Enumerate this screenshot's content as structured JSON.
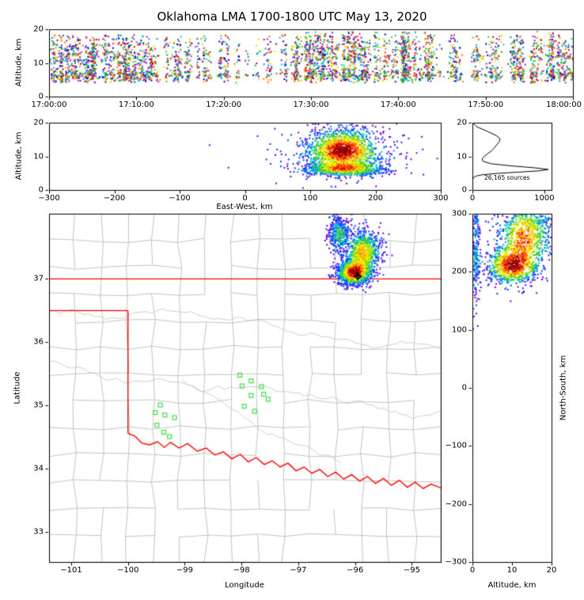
{
  "title": "Oklahoma LMA 1700-1800 UTC May 13, 2020",
  "palette_speckle": [
    "#dd0000",
    "#ff7700",
    "#ffcc00",
    "#55cc00",
    "#00aa33",
    "#00cccc",
    "#2277ff",
    "#0000cc",
    "#7722cc",
    "#cc2299"
  ],
  "palette_density": [
    "#800000",
    "#cc0000",
    "#ff2a00",
    "#ff7f00",
    "#ffc800",
    "#fff200",
    "#a0e600",
    "#3fcc1f",
    "#00ccb8",
    "#0090ff",
    "#0040ff",
    "#6a00e6"
  ],
  "chart_data": [
    {
      "id": "time-height",
      "type": "scatter",
      "xlabel": "",
      "ylabel": "Altitude, km",
      "xlim": [
        0,
        3600
      ],
      "ylim": [
        0,
        20
      ],
      "xticks": [
        0,
        600,
        1200,
        1800,
        2400,
        3000,
        3600
      ],
      "xtick_labels": [
        "17:00:00",
        "17:10:00",
        "17:20:00",
        "17:30:00",
        "17:40:00",
        "17:50:00",
        "18:00:00"
      ],
      "yticks": [
        0,
        10,
        20
      ],
      "description": "VHF lightning sources vs time, random-color speckle, mostly 4-19 km altitude, dense 1700-1713 and 1728-1745 UTC",
      "n_columns": 280,
      "n_background": 380,
      "time_density": [
        [
          0,
          1.0
        ],
        [
          600,
          1.0
        ],
        [
          780,
          0.55
        ],
        [
          1000,
          0.45
        ],
        [
          1400,
          0.4
        ],
        [
          1650,
          0.35
        ],
        [
          1720,
          0.85
        ],
        [
          1900,
          1.0
        ],
        [
          2400,
          1.0
        ],
        [
          2700,
          0.8
        ],
        [
          2850,
          0.5
        ],
        [
          3100,
          0.5
        ],
        [
          3300,
          0.75
        ],
        [
          3600,
          0.85
        ]
      ],
      "alt_bands": [
        {
          "mean": 6.4,
          "sd": 1.15,
          "w": 0.47
        },
        {
          "mean": 11.2,
          "sd": 1.9,
          "w": 0.35
        },
        {
          "min": 12.5,
          "max": 18.3,
          "w": 0.18
        }
      ],
      "tall_window": [
        1680,
        2760
      ]
    },
    {
      "id": "east-west-altitude",
      "type": "scatter",
      "xlabel": "East-West, km",
      "ylabel": "Altitude, km",
      "xlim": [
        -300,
        300
      ],
      "ylim": [
        0,
        20
      ],
      "xticks": [
        -300,
        -200,
        -100,
        0,
        100,
        200,
        300
      ],
      "xtick_labels": [
        "−300",
        "−200",
        "−100",
        "0",
        "100",
        "200",
        "300"
      ],
      "yticks": [
        0,
        10,
        20
      ],
      "n_points": 2600,
      "clusters": [
        {
          "cx": 150,
          "cy": 11.8,
          "sx": 26,
          "sy": 3.0,
          "w": 0.54
        },
        {
          "cx": 152,
          "cy": 6.3,
          "sx": 30,
          "sy": 1.0,
          "w": 0.36
        },
        {
          "cx": 155,
          "cy": 11.0,
          "sx": 55,
          "sy": 5.0,
          "w": 0.1
        }
      ]
    },
    {
      "id": "altitude-histogram",
      "type": "line",
      "xlabel": "",
      "ylabel": "",
      "xlim": [
        0,
        1100
      ],
      "ylim": [
        0,
        20
      ],
      "xticks": [
        0,
        1000
      ],
      "yticks": [
        0,
        10,
        20
      ],
      "annotation": "26,165 sources",
      "profile": [
        [
          3,
          20
        ],
        [
          60,
          18.8
        ],
        [
          200,
          17.5
        ],
        [
          330,
          16.2
        ],
        [
          385,
          15.2
        ],
        [
          370,
          14.2
        ],
        [
          330,
          13.2
        ],
        [
          300,
          12.4
        ],
        [
          262,
          11.6
        ],
        [
          215,
          10.8
        ],
        [
          165,
          10.0
        ],
        [
          135,
          9.2
        ],
        [
          150,
          8.5
        ],
        [
          260,
          7.8
        ],
        [
          520,
          7.2
        ],
        [
          860,
          6.6
        ],
        [
          1055,
          6.1
        ],
        [
          930,
          5.7
        ],
        [
          640,
          5.3
        ],
        [
          330,
          4.9
        ],
        [
          130,
          4.5
        ],
        [
          45,
          4.1
        ],
        [
          12,
          3.6
        ],
        [
          4,
          3.0
        ],
        [
          2,
          2.2
        ],
        [
          1,
          1.2
        ],
        [
          1,
          0.2
        ]
      ]
    },
    {
      "id": "plan-view-map",
      "type": "scatter",
      "xlabel": "Longitude",
      "ylabel": "Latitude",
      "xlim": [
        -101.39,
        -94.49
      ],
      "ylim": [
        32.53,
        38.03
      ],
      "xticks": [
        -101,
        -100,
        -99,
        -98,
        -97,
        -96,
        -95
      ],
      "xtick_labels": [
        "−101",
        "−100",
        "−99",
        "−98",
        "−97",
        "−96",
        "−95"
      ],
      "yticks": [
        33,
        34,
        35,
        36,
        37
      ],
      "n_points": 2300,
      "clusters": [
        {
          "cx": -96.28,
          "cy": 37.72,
          "sx": 0.1,
          "sy": 0.14,
          "w": 0.18
        },
        {
          "cx": -95.86,
          "cy": 37.42,
          "sx": 0.16,
          "sy": 0.17,
          "w": 0.34
        },
        {
          "cx": -96.02,
          "cy": 37.1,
          "sx": 0.15,
          "sy": 0.1,
          "w": 0.48
        }
      ],
      "marker": {
        "lon": -95.95,
        "lat": 37.04,
        "shape": "diamond-plus",
        "color": "#000000"
      },
      "station_color": "#44dd44",
      "stations": [
        [
          -98.03,
          35.48
        ],
        [
          -97.99,
          35.31
        ],
        [
          -97.83,
          35.39
        ],
        [
          -97.65,
          35.3
        ],
        [
          -97.61,
          35.18
        ],
        [
          -97.83,
          35.16
        ],
        [
          -97.53,
          35.1
        ],
        [
          -97.95,
          34.99
        ],
        [
          -97.77,
          34.91
        ],
        [
          -99.43,
          35.01
        ],
        [
          -99.52,
          34.89
        ],
        [
          -99.35,
          34.85
        ],
        [
          -99.18,
          34.81
        ],
        [
          -99.49,
          34.69
        ],
        [
          -99.37,
          34.58
        ],
        [
          -99.27,
          34.51
        ]
      ],
      "border_color": "#ff0000",
      "state_border": {
        "north": [
          [
            -101.39,
            37.0
          ],
          [
            -94.49,
            37.0
          ]
        ],
        "panhandle_south": [
          [
            -101.39,
            36.5
          ],
          [
            -100.0,
            36.5
          ]
        ],
        "texas_west": [
          [
            -100.0,
            36.5
          ],
          [
            -100.0,
            34.56
          ]
        ],
        "red_river": [
          [
            -100.0,
            34.56
          ],
          [
            -99.88,
            34.52
          ],
          [
            -99.76,
            34.41
          ],
          [
            -99.62,
            34.38
          ],
          [
            -99.48,
            34.43
          ],
          [
            -99.36,
            34.34
          ],
          [
            -99.25,
            34.42
          ],
          [
            -99.1,
            34.33
          ],
          [
            -98.95,
            34.4
          ],
          [
            -98.78,
            34.28
          ],
          [
            -98.62,
            34.33
          ],
          [
            -98.47,
            34.22
          ],
          [
            -98.32,
            34.27
          ],
          [
            -98.17,
            34.16
          ],
          [
            -98.02,
            34.23
          ],
          [
            -97.88,
            34.11
          ],
          [
            -97.74,
            34.18
          ],
          [
            -97.6,
            34.07
          ],
          [
            -97.46,
            34.13
          ],
          [
            -97.32,
            34.03
          ],
          [
            -97.18,
            34.09
          ],
          [
            -97.04,
            33.97
          ],
          [
            -96.9,
            34.03
          ],
          [
            -96.76,
            33.93
          ],
          [
            -96.62,
            33.99
          ],
          [
            -96.48,
            33.88
          ],
          [
            -96.34,
            33.95
          ],
          [
            -96.2,
            33.84
          ],
          [
            -96.06,
            33.91
          ],
          [
            -95.92,
            33.81
          ],
          [
            -95.78,
            33.88
          ],
          [
            -95.64,
            33.77
          ],
          [
            -95.5,
            33.85
          ],
          [
            -95.36,
            33.74
          ],
          [
            -95.22,
            33.82
          ],
          [
            -95.08,
            33.71
          ],
          [
            -94.94,
            33.79
          ],
          [
            -94.8,
            33.69
          ],
          [
            -94.66,
            33.76
          ],
          [
            -94.49,
            33.7
          ]
        ]
      },
      "county_color": "#b5b5b5",
      "county_grid": {
        "nx": 15,
        "ny": 13,
        "jitter": 0.09,
        "skip": 0.15
      },
      "river_color": "#c2c2c2",
      "rivers": [
        {
          "x0": -101.39,
          "y0": 36.52,
          "end": -94.49,
          "trend": -0.003,
          "amp": 0.1
        },
        {
          "x0": -101.39,
          "y0": 35.66,
          "end": -94.49,
          "trend": -0.009,
          "amp": 0.11
        },
        {
          "x0": -99.05,
          "y0": 35.42,
          "end": -96.2,
          "trend": -0.042,
          "amp": 0.1
        }
      ]
    },
    {
      "id": "north-south-altitude",
      "type": "scatter",
      "xlabel": "Altitude, km",
      "ylabel": "North-South, km",
      "xlim": [
        0,
        20
      ],
      "ylim": [
        -300,
        300
      ],
      "xticks": [
        0,
        10,
        20
      ],
      "yticks": [
        -300,
        -200,
        -100,
        0,
        100,
        200,
        300
      ],
      "ytick_labels": [
        "−300",
        "−200",
        "−100",
        "0",
        "100",
        "200",
        "300"
      ],
      "n_points": 1900,
      "clusters": [
        {
          "cx": 10,
          "cy": 210,
          "sx": 3.3,
          "sy": 16,
          "w": 0.45
        },
        {
          "cx": 13,
          "cy": 258,
          "sx": 3.5,
          "sy": 28,
          "w": 0.38
        },
        {
          "cx": 0.9,
          "cy": 240,
          "sx": 0.55,
          "sy": 50,
          "w": 0.12
        },
        {
          "cx": 16,
          "cy": 290,
          "sx": 2.5,
          "sy": 12,
          "w": 0.05
        }
      ]
    }
  ]
}
